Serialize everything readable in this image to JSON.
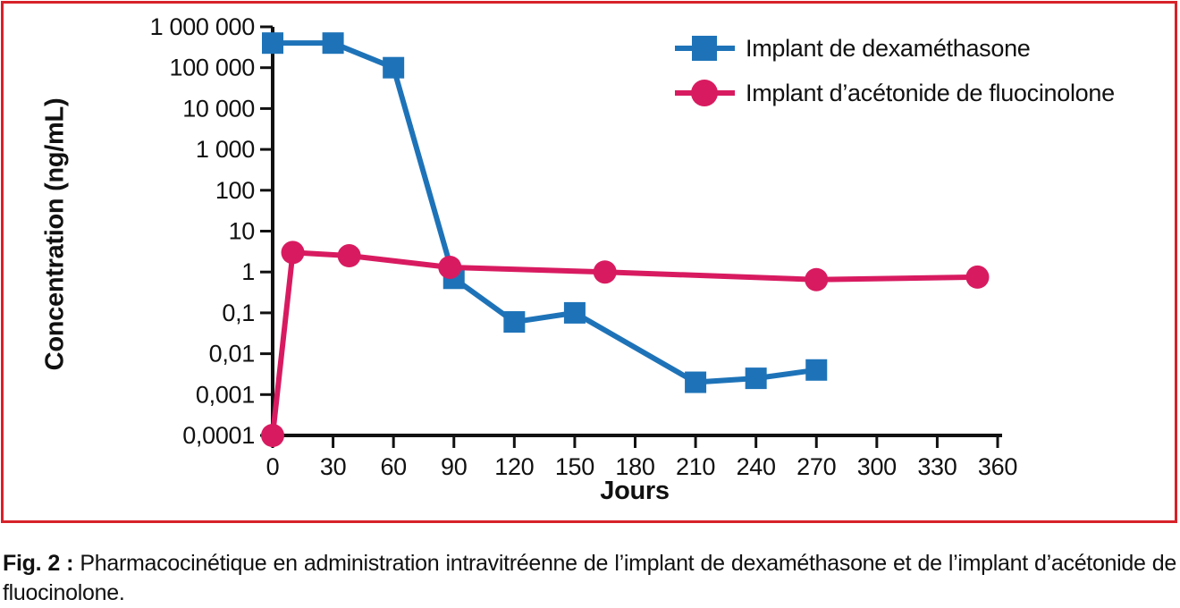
{
  "figure": {
    "caption_prefix": "Fig. 2 :",
    "caption_text": "Pharmacocinétique en administration intravitréenne de l’implant de dexaméthasone et de l’implant d’acétonide de fluocinolone."
  },
  "colors": {
    "border_red": "#d7222a",
    "axis": "#111111",
    "dexamethasone_blue": "#1e73b8",
    "fluocinolone_pink": "#d81b60",
    "background": "#ffffff"
  },
  "chart_data": {
    "type": "line",
    "title": "",
    "xlabel": "Jours",
    "ylabel": "Concentration (ng/mL)",
    "x_scale": "linear",
    "y_scale": "log",
    "xlim": [
      0,
      360
    ],
    "ylim": [
      0.0001,
      1000000
    ],
    "grid": false,
    "legend_position": "top-right",
    "x_ticks": [
      0,
      30,
      60,
      90,
      120,
      150,
      180,
      210,
      240,
      270,
      300,
      330,
      360
    ],
    "y_ticks": [
      {
        "value": 1000000,
        "label": "1 000 000"
      },
      {
        "value": 100000,
        "label": "100 000"
      },
      {
        "value": 10000,
        "label": "10 000"
      },
      {
        "value": 1000,
        "label": "1 000"
      },
      {
        "value": 100,
        "label": "100"
      },
      {
        "value": 10,
        "label": "10"
      },
      {
        "value": 1,
        "label": "1"
      },
      {
        "value": 0.1,
        "label": "0,1"
      },
      {
        "value": 0.01,
        "label": "0,01"
      },
      {
        "value": 0.001,
        "label": "0,001"
      },
      {
        "value": 0.0001,
        "label": "0,0001"
      }
    ],
    "series": [
      {
        "name": "Implant de dexaméthasone",
        "color": "#1e73b8",
        "marker": "square",
        "points": [
          [
            0,
            400000
          ],
          [
            30,
            400000
          ],
          [
            60,
            100000
          ],
          [
            90,
            0.7
          ],
          [
            120,
            0.06
          ],
          [
            150,
            0.1
          ],
          [
            210,
            0.002
          ],
          [
            240,
            0.0025
          ],
          [
            270,
            0.004
          ]
        ]
      },
      {
        "name": "Implant d’acétonide de fluocinolone",
        "color": "#d81b60",
        "marker": "circle",
        "points": [
          [
            0,
            0.0001
          ],
          [
            10,
            3
          ],
          [
            38,
            2.5
          ],
          [
            88,
            1.3
          ],
          [
            165,
            1
          ],
          [
            270,
            0.65
          ],
          [
            350,
            0.75
          ]
        ]
      }
    ]
  }
}
